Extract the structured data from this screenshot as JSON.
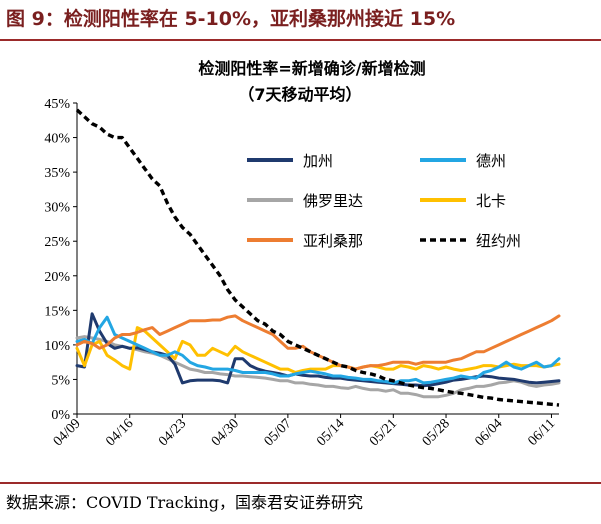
{
  "figure": {
    "title": "图 9：检测阳性率在 5-10%，亚利桑那州接近 15%",
    "source": "数据来源：COVID Tracking，国泰君安证券研究"
  },
  "chart_data": {
    "type": "line",
    "title": "检测阳性率=新增确诊/新增检测",
    "subtitle": "（7天移动平均）",
    "xlabel": "",
    "ylabel": "",
    "ylim": [
      0,
      45
    ],
    "yticks": [
      "0%",
      "5%",
      "10%",
      "15%",
      "20%",
      "25%",
      "30%",
      "35%",
      "40%",
      "45%"
    ],
    "xtick_labels": [
      "04/09",
      "04/16",
      "04/23",
      "04/30",
      "05/07",
      "05/14",
      "05/21",
      "05/28",
      "06/04",
      "06/11"
    ],
    "x_start_label": "04/09",
    "x_end_label": "06/12",
    "legend_position": "upper-right",
    "grid": false,
    "series": [
      {
        "name": "加州",
        "color": "#1f3a6e",
        "dash": "solid",
        "values": [
          7.0,
          6.8,
          14.5,
          12.0,
          10.2,
          9.5,
          9.8,
          9.5,
          9.6,
          9.3,
          9.0,
          8.8,
          8.5,
          7.2,
          4.5,
          4.8,
          4.9,
          4.9,
          4.9,
          4.8,
          4.5,
          8.0,
          8.0,
          7.0,
          6.5,
          6.2,
          6.0,
          5.8,
          5.5,
          5.8,
          5.6,
          5.5,
          5.5,
          5.3,
          5.2,
          5.2,
          5.0,
          4.9,
          4.8,
          4.7,
          4.6,
          4.5,
          4.4,
          4.3,
          4.2,
          4.2,
          4.1,
          4.2,
          4.4,
          4.6,
          4.9,
          5.0,
          5.2,
          5.4,
          5.5,
          5.4,
          5.2,
          5.1,
          5.0,
          4.8,
          4.6,
          4.5,
          4.6,
          4.7,
          4.8
        ]
      },
      {
        "name": "德州",
        "color": "#23a6e3",
        "dash": "solid",
        "values": [
          10.5,
          10.8,
          10.2,
          12.5,
          14.0,
          11.5,
          11.0,
          10.5,
          10.0,
          9.5,
          9.0,
          8.5,
          8.5,
          9.0,
          8.5,
          7.5,
          7.0,
          6.8,
          6.5,
          6.5,
          6.5,
          6.3,
          6.0,
          6.0,
          6.0,
          6.0,
          5.8,
          5.5,
          5.5,
          5.8,
          6.0,
          6.2,
          6.0,
          5.8,
          5.5,
          5.5,
          5.3,
          5.2,
          5.0,
          5.0,
          4.8,
          4.7,
          4.5,
          4.8,
          4.8,
          5.0,
          4.5,
          4.6,
          4.8,
          5.0,
          5.2,
          5.5,
          5.3,
          5.2,
          6.0,
          6.3,
          6.8,
          7.5,
          6.8,
          6.5,
          7.0,
          7.5,
          6.8,
          7.0,
          8.0
        ]
      },
      {
        "name": "佛罗里达",
        "color": "#a6a6a6",
        "dash": "solid",
        "values": [
          11.0,
          11.2,
          11.0,
          10.8,
          10.5,
          10.0,
          9.8,
          9.5,
          9.3,
          9.0,
          8.8,
          8.5,
          8.0,
          7.5,
          7.0,
          6.5,
          6.3,
          6.0,
          6.0,
          5.8,
          5.7,
          5.5,
          5.5,
          5.4,
          5.3,
          5.2,
          5.0,
          4.8,
          4.8,
          4.5,
          4.5,
          4.3,
          4.2,
          4.0,
          4.0,
          3.8,
          3.7,
          4.0,
          3.7,
          3.5,
          3.5,
          3.3,
          3.5,
          3.0,
          3.0,
          2.8,
          2.5,
          2.5,
          2.5,
          2.7,
          3.0,
          3.5,
          3.7,
          4.0,
          4.0,
          4.2,
          4.5,
          4.6,
          4.8,
          4.6,
          4.2,
          4.0,
          4.2,
          4.3,
          4.5
        ]
      },
      {
        "name": "北卡",
        "color": "#ffc000",
        "dash": "solid",
        "values": [
          9.5,
          7.0,
          10.0,
          10.5,
          8.5,
          7.8,
          7.0,
          6.5,
          12.5,
          12.0,
          11.0,
          10.0,
          9.0,
          8.0,
          10.5,
          10.0,
          8.5,
          8.5,
          9.5,
          9.0,
          8.5,
          9.8,
          9.0,
          8.5,
          8.0,
          7.5,
          7.0,
          6.5,
          6.5,
          6.0,
          6.3,
          6.5,
          6.5,
          6.5,
          7.0,
          7.0,
          6.8,
          6.5,
          6.8,
          7.0,
          6.8,
          6.5,
          6.5,
          7.0,
          6.8,
          6.5,
          7.0,
          6.8,
          6.5,
          6.8,
          6.5,
          6.3,
          6.5,
          6.7,
          7.0,
          7.0,
          6.8,
          7.0,
          7.2,
          7.0,
          7.0,
          7.0,
          6.8,
          7.0,
          7.2
        ]
      },
      {
        "name": "亚利桑那",
        "color": "#ed7d31",
        "dash": "solid",
        "values": [
          10.0,
          10.5,
          10.2,
          9.5,
          10.0,
          11.0,
          11.5,
          11.5,
          11.8,
          12.2,
          12.5,
          11.5,
          12.0,
          12.5,
          13.0,
          13.5,
          13.5,
          13.5,
          13.6,
          13.6,
          14.0,
          14.2,
          13.5,
          13.0,
          12.5,
          12.0,
          11.5,
          10.5,
          9.5,
          9.5,
          9.8,
          9.0,
          8.5,
          8.0,
          7.5,
          7.0,
          6.8,
          6.5,
          6.8,
          7.0,
          7.0,
          7.2,
          7.5,
          7.5,
          7.5,
          7.2,
          7.5,
          7.5,
          7.5,
          7.5,
          7.8,
          8.0,
          8.5,
          9.0,
          9.0,
          9.5,
          10.0,
          10.5,
          11.0,
          11.5,
          12.0,
          12.5,
          13.0,
          13.5,
          14.2
        ]
      },
      {
        "name": "纽约州",
        "color": "#000000",
        "dash": "dashed",
        "values": [
          44.0,
          43.0,
          42.0,
          41.5,
          40.5,
          40.0,
          40.0,
          38.5,
          37.0,
          35.5,
          34.0,
          33.0,
          30.5,
          28.5,
          27.0,
          26.0,
          24.5,
          23.0,
          21.5,
          20.0,
          18.0,
          16.5,
          15.5,
          14.5,
          13.5,
          13.0,
          12.0,
          11.5,
          10.5,
          10.0,
          9.5,
          9.0,
          8.5,
          8.0,
          7.5,
          7.0,
          6.8,
          6.3,
          6.0,
          5.8,
          5.5,
          5.0,
          4.8,
          4.5,
          4.2,
          4.0,
          3.8,
          3.7,
          3.5,
          3.3,
          3.1,
          3.0,
          2.8,
          2.6,
          2.4,
          2.3,
          2.1,
          2.0,
          1.9,
          1.8,
          1.7,
          1.6,
          1.5,
          1.4,
          1.3
        ]
      }
    ]
  }
}
